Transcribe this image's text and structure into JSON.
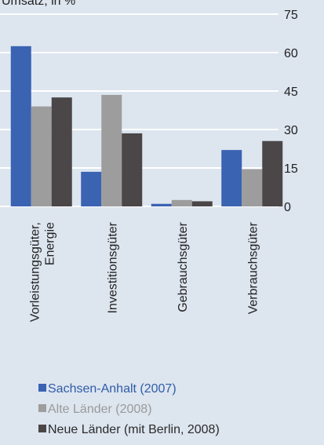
{
  "chart_data": {
    "type": "bar",
    "title": "Umsatz, in %",
    "categories": [
      "Vorleistungsgüter,\nEnergie",
      "Investitionsgüter",
      "Gebrauchsgüter",
      "Verbrauchsgüter"
    ],
    "series": [
      {
        "name": "Sachsen-Anhalt (2007)",
        "color": "#3a63b2",
        "values": [
          62.5,
          13.5,
          1,
          22
        ]
      },
      {
        "name": "Alte Länder (2008)",
        "color": "#9d9d9d",
        "values": [
          39,
          43.5,
          2.5,
          14.5
        ]
      },
      {
        "name": "Neue Länder (mit Berlin, 2008)",
        "color": "#4b4647",
        "values": [
          42.5,
          28.5,
          2,
          25.5
        ]
      }
    ],
    "ylim": [
      0,
      75
    ],
    "yticks": [
      0,
      15,
      30,
      45,
      60,
      75
    ],
    "grid": true
  }
}
